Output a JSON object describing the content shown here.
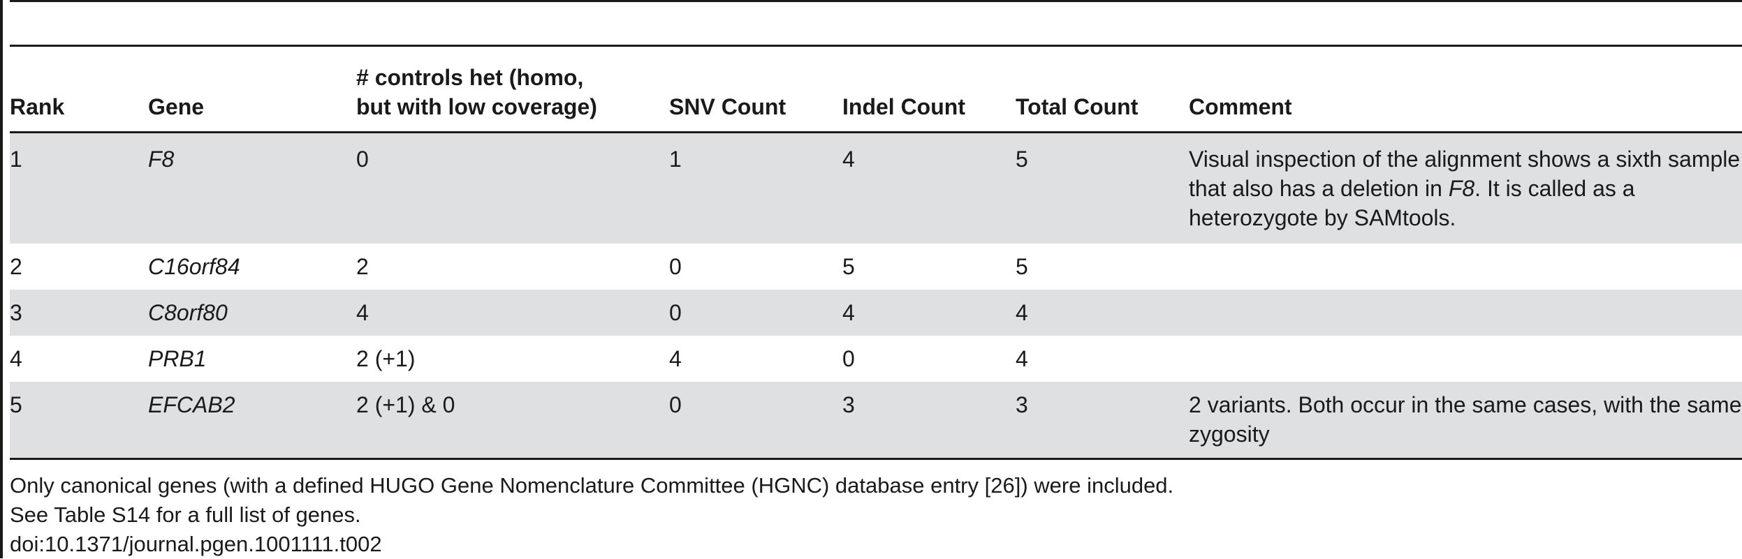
{
  "table": {
    "headers": {
      "rank": "Rank",
      "gene": "Gene",
      "controls_line1": "# controls het (homo,",
      "controls_line2": "but with low coverage)",
      "snv": "SNV Count",
      "indel": "Indel Count",
      "total": "Total Count",
      "comment": "Comment"
    },
    "rows": [
      {
        "rank": "1",
        "gene": "F8",
        "controls": "0",
        "snv": "1",
        "indel": "4",
        "total": "5",
        "comment_pre": "Visual inspection of the alignment shows a sixth sample that also has a deletion in ",
        "comment_gene": "F8",
        "comment_post": ". It is called as a heterozygote by SAMtools."
      },
      {
        "rank": "2",
        "gene": "C16orf84",
        "controls": "2",
        "snv": "0",
        "indel": "5",
        "total": "5",
        "comment_pre": "",
        "comment_gene": "",
        "comment_post": ""
      },
      {
        "rank": "3",
        "gene": "C8orf80",
        "controls": "4",
        "snv": "0",
        "indel": "4",
        "total": "4",
        "comment_pre": "",
        "comment_gene": "",
        "comment_post": ""
      },
      {
        "rank": "4",
        "gene": "PRB1",
        "controls": "2 (+1)",
        "snv": "4",
        "indel": "0",
        "total": "4",
        "comment_pre": "",
        "comment_gene": "",
        "comment_post": ""
      },
      {
        "rank": "5",
        "gene": "EFCAB2",
        "controls": "2 (+1) & 0",
        "snv": "0",
        "indel": "3",
        "total": "3",
        "comment_pre": "2 variants. Both occur in the same cases, with the same zygosity",
        "comment_gene": "",
        "comment_post": ""
      }
    ]
  },
  "footnotes": {
    "line1": "Only canonical genes (with a defined HUGO Gene Nomenclature Committee (HGNC) database entry [26]) were included.",
    "line2": "See Table S14 for a full list of genes.",
    "doi": "doi:10.1371/journal.pgen.1001111.t002"
  },
  "colors": {
    "row_shade": "#dfe0e2",
    "rule": "#1a1a1a"
  }
}
